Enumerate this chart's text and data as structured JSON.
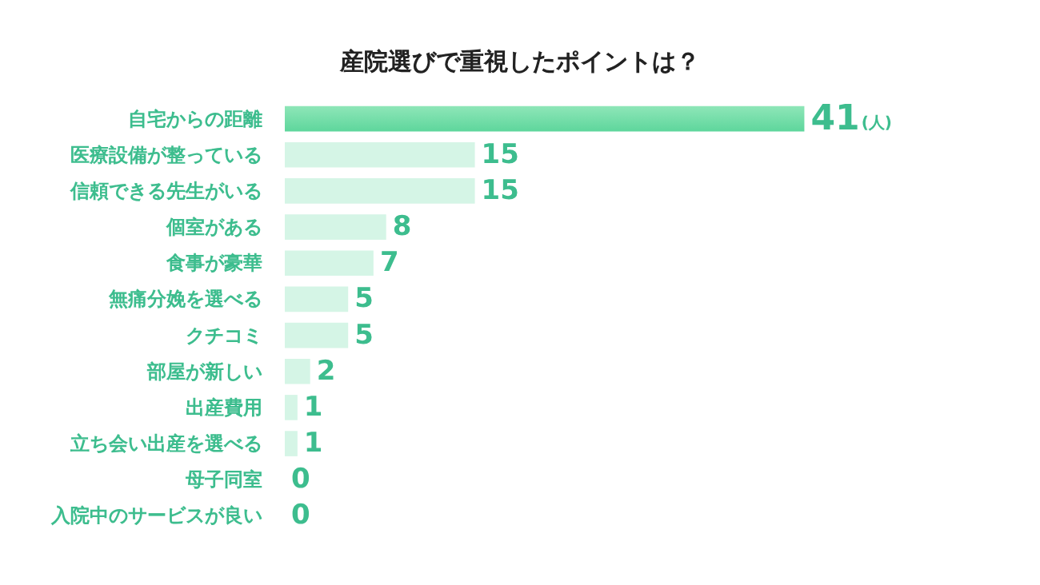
{
  "chart_data": {
    "type": "bar",
    "orientation": "horizontal",
    "title": "産院選びで重視したポイントは？",
    "categories": [
      "自宅からの距離",
      "医療設備が整っている",
      "信頼できる先生がいる",
      "個室がある",
      "食事が豪華",
      "無痛分娩を選べる",
      "クチコミ",
      "部屋が新しい",
      "出産費用",
      "立ち会い出産を選べる",
      "母子同室",
      "入院中のサービスが良い"
    ],
    "values": [
      41,
      15,
      15,
      8,
      7,
      5,
      5,
      2,
      1,
      1,
      0,
      0
    ],
    "colors": [
      "#5ed69c",
      "#d5f5e6",
      "#d5f5e6",
      "#d5f5e6",
      "#d5f5e6",
      "#d5f5e6",
      "#d5f5e6",
      "#d5f5e6",
      "#d5f5e6",
      "#d5f5e6",
      "#d5f5e6",
      "#d5f5e6"
    ],
    "data_labels": true,
    "annotations": [
      "(人)"
    ],
    "grid": false
  }
}
